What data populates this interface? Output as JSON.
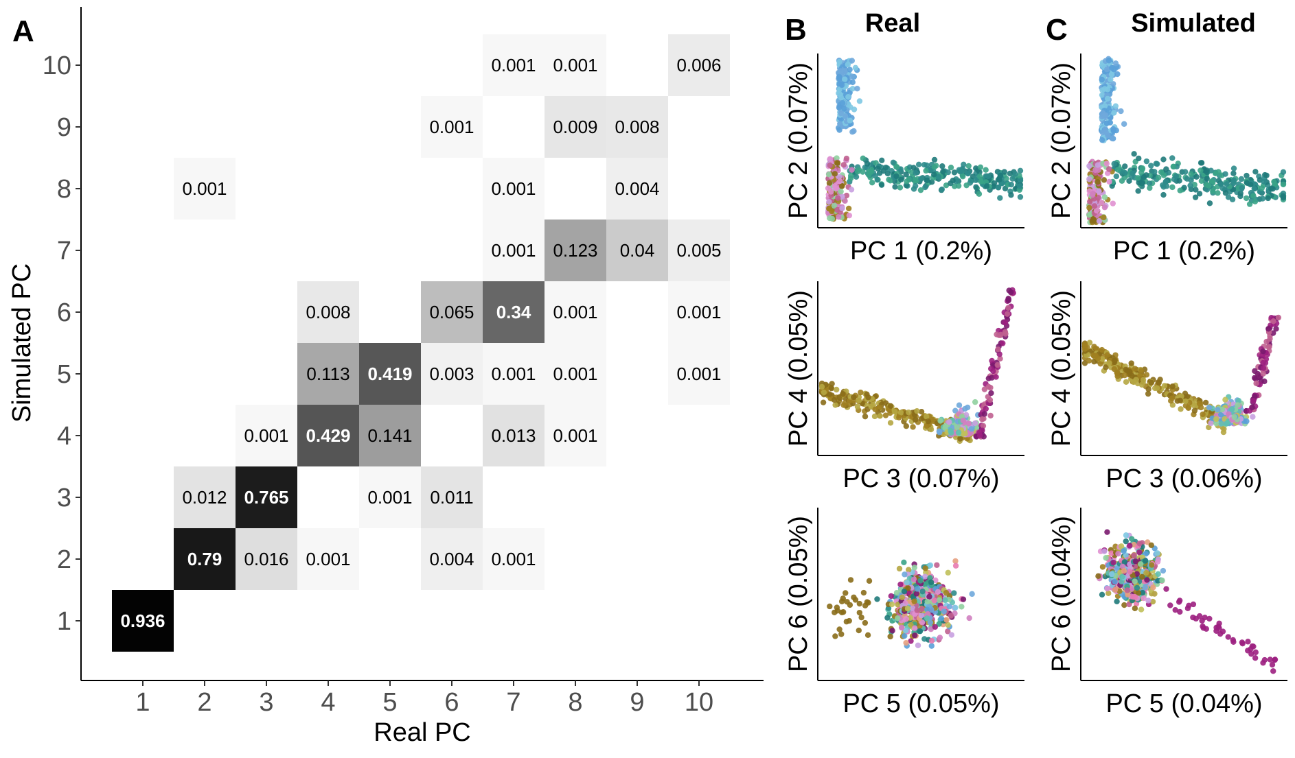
{
  "panel_a": {
    "letter": "A",
    "chart_data": {
      "type": "heatmap",
      "xlabel": "Real PC",
      "ylabel": "Simulated PC",
      "x_ticks": [
        "1",
        "2",
        "3",
        "4",
        "5",
        "6",
        "7",
        "8",
        "9",
        "10"
      ],
      "y_ticks": [
        "1",
        "2",
        "3",
        "4",
        "5",
        "6",
        "7",
        "8",
        "9",
        "10"
      ],
      "value_range": [
        0,
        1
      ],
      "cells": [
        {
          "real": 1,
          "sim": 1,
          "value": 0.936,
          "label": "0.936"
        },
        {
          "real": 2,
          "sim": 2,
          "value": 0.79,
          "label": "0.79"
        },
        {
          "real": 3,
          "sim": 2,
          "value": 0.016,
          "label": "0.016"
        },
        {
          "real": 4,
          "sim": 2,
          "value": 0.001,
          "label": "0.001"
        },
        {
          "real": 6,
          "sim": 2,
          "value": 0.004,
          "label": "0.004"
        },
        {
          "real": 7,
          "sim": 2,
          "value": 0.001,
          "label": "0.001"
        },
        {
          "real": 2,
          "sim": 3,
          "value": 0.012,
          "label": "0.012"
        },
        {
          "real": 3,
          "sim": 3,
          "value": 0.765,
          "label": "0.765"
        },
        {
          "real": 5,
          "sim": 3,
          "value": 0.001,
          "label": "0.001"
        },
        {
          "real": 6,
          "sim": 3,
          "value": 0.011,
          "label": "0.011"
        },
        {
          "real": 3,
          "sim": 4,
          "value": 0.001,
          "label": "0.001"
        },
        {
          "real": 4,
          "sim": 4,
          "value": 0.429,
          "label": "0.429"
        },
        {
          "real": 5,
          "sim": 4,
          "value": 0.141,
          "label": "0.141"
        },
        {
          "real": 7,
          "sim": 4,
          "value": 0.013,
          "label": "0.013"
        },
        {
          "real": 8,
          "sim": 4,
          "value": 0.001,
          "label": "0.001"
        },
        {
          "real": 4,
          "sim": 5,
          "value": 0.113,
          "label": "0.113"
        },
        {
          "real": 5,
          "sim": 5,
          "value": 0.419,
          "label": "0.419"
        },
        {
          "real": 6,
          "sim": 5,
          "value": 0.003,
          "label": "0.003"
        },
        {
          "real": 7,
          "sim": 5,
          "value": 0.001,
          "label": "0.001"
        },
        {
          "real": 8,
          "sim": 5,
          "value": 0.001,
          "label": "0.001"
        },
        {
          "real": 10,
          "sim": 5,
          "value": 0.001,
          "label": "0.001"
        },
        {
          "real": 4,
          "sim": 6,
          "value": 0.008,
          "label": "0.008"
        },
        {
          "real": 6,
          "sim": 6,
          "value": 0.065,
          "label": "0.065"
        },
        {
          "real": 7,
          "sim": 6,
          "value": 0.34,
          "label": "0.34"
        },
        {
          "real": 8,
          "sim": 6,
          "value": 0.001,
          "label": "0.001"
        },
        {
          "real": 10,
          "sim": 6,
          "value": 0.001,
          "label": "0.001"
        },
        {
          "real": 7,
          "sim": 7,
          "value": 0.001,
          "label": "0.001"
        },
        {
          "real": 8,
          "sim": 7,
          "value": 0.123,
          "label": "0.123"
        },
        {
          "real": 9,
          "sim": 7,
          "value": 0.04,
          "label": "0.04"
        },
        {
          "real": 10,
          "sim": 7,
          "value": 0.005,
          "label": "0.005"
        },
        {
          "real": 2,
          "sim": 8,
          "value": 0.001,
          "label": "0.001"
        },
        {
          "real": 7,
          "sim": 8,
          "value": 0.001,
          "label": "0.001"
        },
        {
          "real": 9,
          "sim": 8,
          "value": 0.004,
          "label": "0.004"
        },
        {
          "real": 6,
          "sim": 9,
          "value": 0.001,
          "label": "0.001"
        },
        {
          "real": 8,
          "sim": 9,
          "value": 0.009,
          "label": "0.009"
        },
        {
          "real": 9,
          "sim": 9,
          "value": 0.008,
          "label": "0.008"
        },
        {
          "real": 7,
          "sim": 10,
          "value": 0.001,
          "label": "0.001"
        },
        {
          "real": 8,
          "sim": 10,
          "value": 0.001,
          "label": "0.001"
        },
        {
          "real": 10,
          "sim": 10,
          "value": 0.006,
          "label": "0.006"
        }
      ]
    }
  },
  "panel_b": {
    "letter": "B",
    "title": "Real",
    "chart_data": [
      {
        "type": "scatter",
        "xlabel": "PC 1 (0.2%)",
        "ylabel": "PC 2 (0.07%)",
        "shape": "real12"
      },
      {
        "type": "scatter",
        "xlabel": "PC 3 (0.07%)",
        "ylabel": "PC 4 (0.05%)",
        "shape": "real34"
      },
      {
        "type": "scatter",
        "xlabel": "PC 5 (0.05%)",
        "ylabel": "PC 6 (0.05%)",
        "shape": "real56"
      }
    ]
  },
  "panel_c": {
    "letter": "C",
    "title": "Simulated",
    "chart_data": [
      {
        "type": "scatter",
        "xlabel": "PC 1 (0.2%)",
        "ylabel": "PC 2 (0.07%)",
        "shape": "sim12"
      },
      {
        "type": "scatter",
        "xlabel": "PC 3 (0.06%)",
        "ylabel": "PC 4 (0.05%)",
        "shape": "sim34"
      },
      {
        "type": "scatter",
        "xlabel": "PC 5 (0.04%)",
        "ylabel": "PC 6 (0.04%)",
        "shape": "sim56"
      }
    ]
  },
  "colors": {
    "cluster_palette": [
      "#6fa8dc",
      "#5aa0d8",
      "#7ec8e3",
      "#2e8b8b",
      "#1f7a7a",
      "#3aa387",
      "#8a6d1a",
      "#a08020",
      "#b5a642",
      "#c0c05a",
      "#d080c0",
      "#e090d0",
      "#c06090",
      "#9c1f80",
      "#7a1a6e",
      "#e87ab0",
      "#90d0a0",
      "#60c0b0",
      "#c8a0e0",
      "#e6a080"
    ]
  }
}
